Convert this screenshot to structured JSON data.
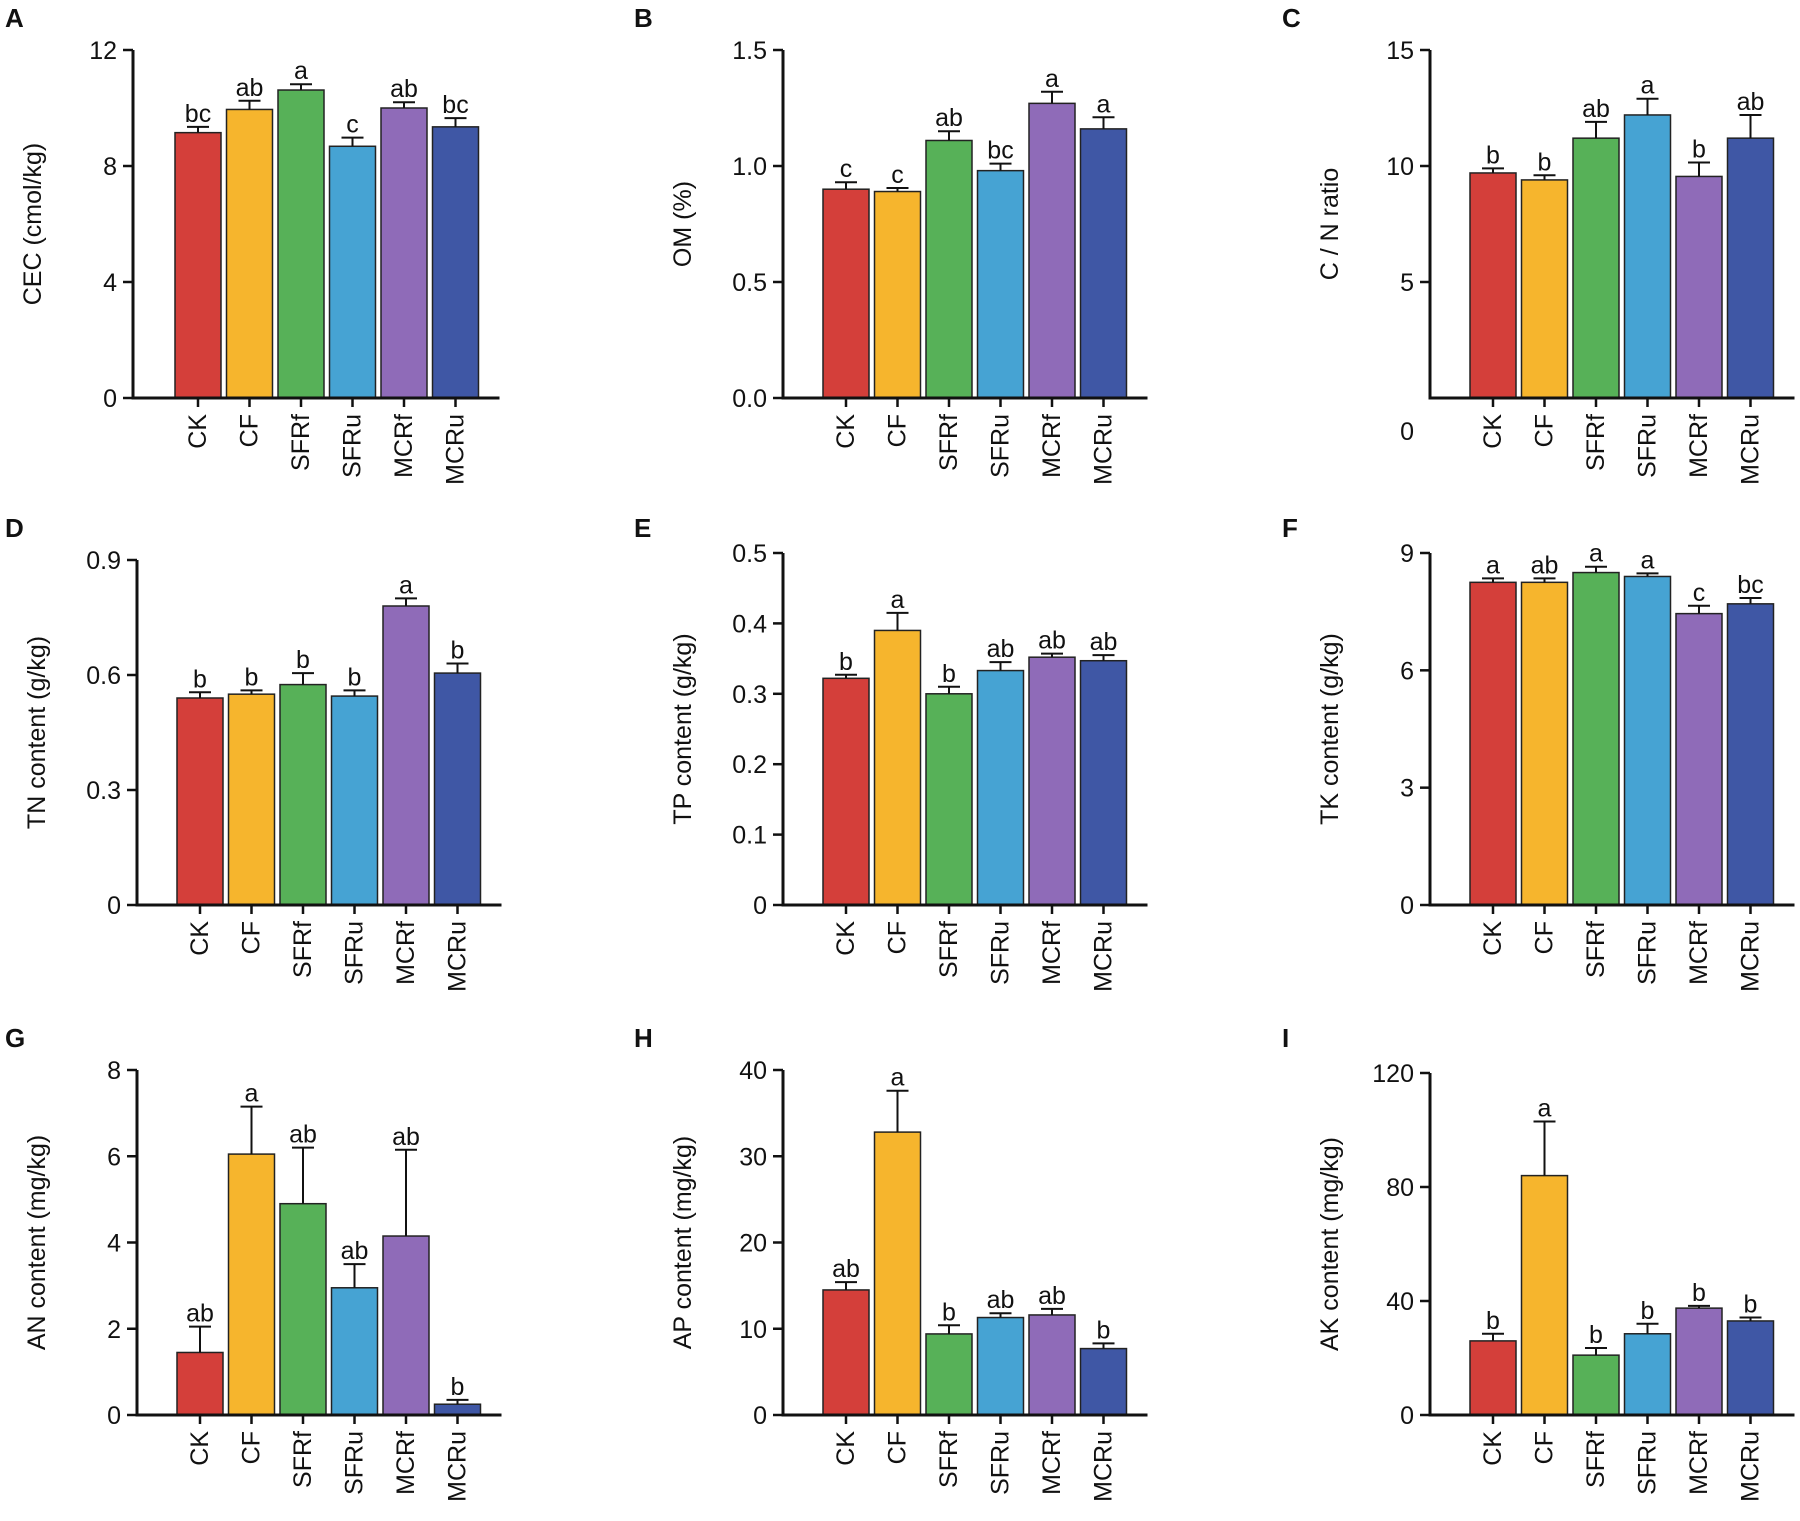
{
  "categories": [
    "CK",
    "CF",
    "SFRf",
    "SFRu",
    "MCRf",
    "MCRu"
  ],
  "colors": [
    "#d43f3a",
    "#f6b52d",
    "#57b158",
    "#46a3d3",
    "#8f6bb8",
    "#3f57a5"
  ],
  "chart_data": [
    {
      "type": "bar",
      "panel": "A",
      "ylabel": "CEC  (cmol/kg)",
      "ylim": [
        0,
        12
      ],
      "ticks": [
        "0",
        "4",
        "8",
        "12"
      ],
      "values": [
        9.15,
        9.95,
        10.62,
        8.68,
        10.0,
        9.35
      ],
      "errors": [
        0.2,
        0.3,
        0.2,
        0.3,
        0.2,
        0.3
      ],
      "letters": [
        "bc",
        "ab",
        "a",
        "c",
        "ab",
        "bc"
      ]
    },
    {
      "type": "bar",
      "panel": "B",
      "ylabel": "OM (%)",
      "ylim": [
        0,
        1.5
      ],
      "ticks": [
        "0.0",
        "0.5",
        "1.0",
        "1.5"
      ],
      "values": [
        0.9,
        0.89,
        1.11,
        0.98,
        1.27,
        1.16
      ],
      "errors": [
        0.03,
        0.015,
        0.04,
        0.03,
        0.05,
        0.05
      ],
      "letters": [
        "c",
        "c",
        "ab",
        "bc",
        "a",
        "a"
      ]
    },
    {
      "type": "bar",
      "panel": "C",
      "ylabel": "C / N ratio",
      "ylim": [
        0,
        15
      ],
      "ticks": [
        "5",
        "10",
        "15"
      ],
      "zero_label": "0",
      "values": [
        9.7,
        9.4,
        11.2,
        12.2,
        9.55,
        11.2
      ],
      "errors": [
        0.2,
        0.2,
        0.7,
        0.7,
        0.6,
        1.0
      ],
      "letters": [
        "b",
        "b",
        "ab",
        "a",
        "b",
        "ab"
      ]
    },
    {
      "type": "bar",
      "panel": "D",
      "ylabel": "TN content (g/kg)",
      "ylim": [
        0,
        0.9
      ],
      "ticks": [
        "0",
        "0.3",
        "0.6",
        "0.9"
      ],
      "values": [
        0.54,
        0.55,
        0.575,
        0.545,
        0.78,
        0.605
      ],
      "errors": [
        0.015,
        0.01,
        0.03,
        0.015,
        0.02,
        0.025
      ],
      "letters": [
        "b",
        "b",
        "b",
        "b",
        "a",
        "b"
      ]
    },
    {
      "type": "bar",
      "panel": "E",
      "ylabel": "TP content (g/kg)",
      "ylim": [
        0,
        0.5
      ],
      "ticks": [
        "0",
        "0.1",
        "0.2",
        "0.3",
        "0.4",
        "0.5"
      ],
      "values": [
        0.322,
        0.39,
        0.3,
        0.333,
        0.352,
        0.347
      ],
      "errors": [
        0.005,
        0.025,
        0.01,
        0.012,
        0.005,
        0.008
      ],
      "letters": [
        "b",
        "a",
        "b",
        "ab",
        "ab",
        "ab"
      ]
    },
    {
      "type": "bar",
      "panel": "F",
      "ylabel": "TK content (g/kg)",
      "ylim": [
        0,
        9
      ],
      "ticks": [
        "0",
        "3",
        "6",
        "9"
      ],
      "values": [
        8.25,
        8.25,
        8.5,
        8.4,
        7.45,
        7.7
      ],
      "errors": [
        0.1,
        0.1,
        0.15,
        0.08,
        0.2,
        0.15
      ],
      "letters": [
        "a",
        "ab",
        "a",
        "a",
        "c",
        "bc"
      ]
    },
    {
      "type": "bar",
      "panel": "G",
      "ylabel": "AN content (mg/kg)",
      "ylim": [
        0,
        8
      ],
      "ticks": [
        "0",
        "2",
        "4",
        "6",
        "8"
      ],
      "values": [
        1.45,
        6.05,
        4.9,
        2.95,
        4.15,
        0.25
      ],
      "errors": [
        0.6,
        1.1,
        1.3,
        0.55,
        2.0,
        0.1
      ],
      "letters": [
        "ab",
        "a",
        "ab",
        "ab",
        "ab",
        "b"
      ]
    },
    {
      "type": "bar",
      "panel": "H",
      "ylabel": "AP content (mg/kg)",
      "ylim": [
        0,
        40
      ],
      "ticks": [
        "0",
        "10",
        "20",
        "30",
        "40"
      ],
      "values": [
        14.5,
        32.8,
        9.4,
        11.3,
        11.6,
        7.7
      ],
      "errors": [
        0.9,
        4.8,
        1.0,
        0.5,
        0.7,
        0.6
      ],
      "letters": [
        "ab",
        "a",
        "b",
        "ab",
        "ab",
        "b"
      ]
    },
    {
      "type": "bar",
      "panel": "I",
      "ylabel": "AK content (mg/kg)",
      "ylim": [
        0,
        120
      ],
      "ticks": [
        "0",
        "40",
        "80",
        "120"
      ],
      "values": [
        26,
        84,
        21,
        28.5,
        37.5,
        33
      ],
      "errors": [
        2.5,
        19,
        2.5,
        3.5,
        0.8,
        1.2
      ],
      "letters": [
        "b",
        "a",
        "b",
        "b",
        "b",
        "b"
      ]
    }
  ]
}
